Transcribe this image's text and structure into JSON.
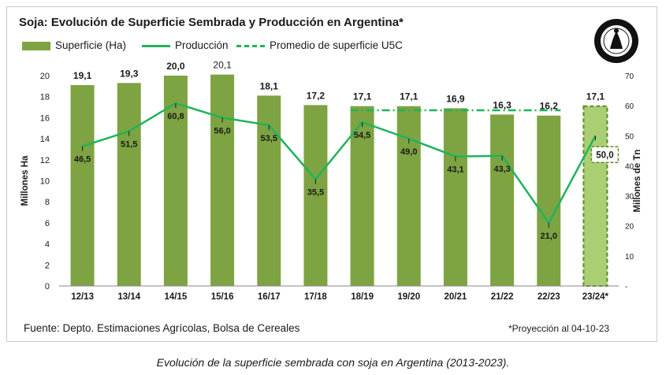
{
  "chart_data": {
    "type": "bar",
    "title": "Soja: Evolución  de Superficie Sembrada y Producción  en Argentina*",
    "categories": [
      "12/13",
      "13/14",
      "14/15",
      "15/16",
      "16/17",
      "17/18",
      "18/19",
      "19/20",
      "20/21",
      "21/22",
      "22/23",
      "23/24*"
    ],
    "series": [
      {
        "name": "Superficie (Ha)",
        "type": "bar",
        "axis": "left",
        "values": [
          19.1,
          19.3,
          20.0,
          20.1,
          18.1,
          17.2,
          17.1,
          17.1,
          16.9,
          16.3,
          16.2,
          17.1
        ],
        "labels": [
          "19,1",
          "19,3",
          "20,0",
          "20,1",
          "18,1",
          "17,2",
          "17,1",
          "17,1",
          "16,9",
          "16,3",
          "16,2",
          "17,1"
        ]
      },
      {
        "name": "Producción",
        "type": "line",
        "axis": "right",
        "values": [
          46.5,
          51.5,
          60.8,
          56.0,
          53.5,
          35.5,
          54.5,
          49.0,
          43.1,
          43.3,
          21.0,
          50.0
        ],
        "labels": [
          "46,5",
          "51,5",
          "60,8",
          "56,0",
          "53,5",
          "35,5",
          "54,5",
          "49,0",
          "43,1",
          "43,3",
          "21,0",
          "50,0"
        ]
      },
      {
        "name": "Promedio  de superficie U5C",
        "type": "dashed-line",
        "axis": "left",
        "value": 16.7,
        "from": "18/19",
        "to": "22/23"
      }
    ],
    "ylabel_left": "Millones Ha",
    "ylabel_right": "Millones de Tn",
    "ylim_left": [
      0,
      20
    ],
    "yticks_left": [
      "0",
      "2",
      "4",
      "6",
      "8",
      "10",
      "12",
      "14",
      "16",
      "18",
      "20"
    ],
    "ylim_right": [
      0,
      70
    ],
    "yticks_right": [
      "-",
      "10",
      "20",
      "30",
      "40",
      "50",
      "60",
      "70"
    ],
    "grid": false,
    "legend": "top-left",
    "projection_category": "23/24*",
    "colors": {
      "bar": "#7ea342",
      "bar_projection": "#a9cf72",
      "projection_border": "#5c8a2b",
      "line": "#1fb35a"
    }
  },
  "source": "Fuente: Depto. Estimaciones Agrícolas, Bolsa de Cereales",
  "note": "*Proyección  al 04-10-23",
  "caption": "Evolución de la superficie sembrada con soja en Argentina (2013-2023)."
}
